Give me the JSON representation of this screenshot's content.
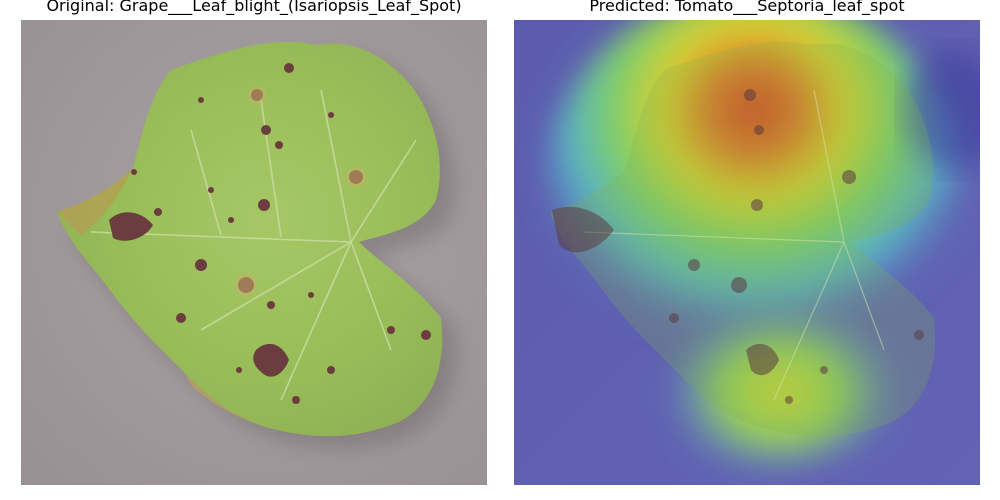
{
  "panels": {
    "left": {
      "title": "Original: Grape___Leaf_blight_(Isariopsis_Leaf_Spot)",
      "image": "grape-leaf-photo"
    },
    "right": {
      "title": "Predicted: Tomato___Septoria_leaf_spot",
      "image": "gradcam-heatmap-overlay"
    }
  },
  "colors": {
    "background_surface": "#a39b9d",
    "leaf_green": "#9bc05a",
    "lesion": "#6b3d3e",
    "heatmap_low": "#4a4aa8",
    "heatmap_high": "#e0301e"
  }
}
